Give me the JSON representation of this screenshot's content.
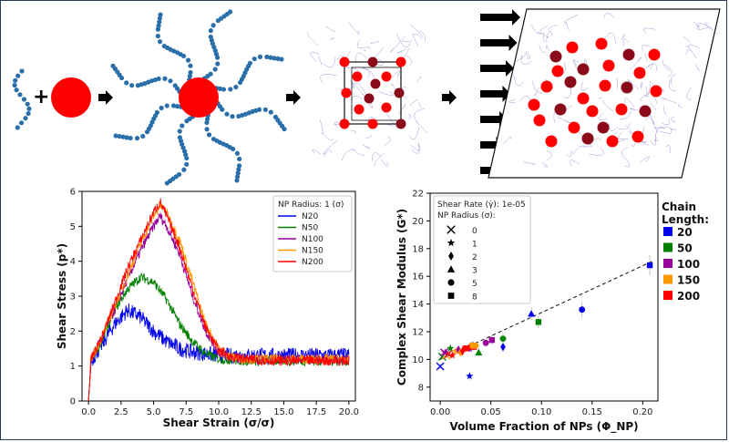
{
  "left_chart": {
    "type": "line",
    "xlabel": "Shear Strain (σ/σ)",
    "ylabel": "Shear Stress (p*)",
    "xlim": [
      -0.5,
      20.5
    ],
    "ylim": [
      0,
      6
    ],
    "xticks": [
      "0.0",
      "2.5",
      "5.0",
      "7.5",
      "10.0",
      "12.5",
      "15.0",
      "17.5",
      "20.0"
    ],
    "yticks": [
      "0",
      "1",
      "2",
      "3",
      "4",
      "5",
      "6"
    ],
    "legend_title": "NP Radius: 1 (σ)",
    "series": [
      {
        "name": "N20",
        "color": "#0000ee",
        "x": [
          0,
          0.2,
          1,
          2,
          3,
          4,
          5,
          6,
          7,
          8,
          9,
          10,
          12,
          14,
          16,
          18,
          20
        ],
        "y": [
          0,
          1.15,
          1.6,
          2.2,
          2.6,
          2.4,
          2.0,
          1.7,
          1.5,
          1.4,
          1.35,
          1.3,
          1.3,
          1.3,
          1.3,
          1.3,
          1.3
        ]
      },
      {
        "name": "N50",
        "color": "#008000",
        "x": [
          0,
          0.2,
          1,
          2,
          3,
          4,
          5,
          6,
          7,
          8,
          9,
          10,
          12,
          14,
          16,
          18,
          20
        ],
        "y": [
          0,
          1.2,
          1.7,
          2.6,
          3.2,
          3.55,
          3.4,
          2.9,
          2.2,
          1.7,
          1.35,
          1.2,
          1.15,
          1.15,
          1.15,
          1.15,
          1.15
        ]
      },
      {
        "name": "N100",
        "color": "#990099",
        "x": [
          0,
          0.2,
          1,
          2,
          3,
          4,
          5,
          5.5,
          6,
          7,
          8,
          9,
          10,
          11,
          12,
          14,
          16,
          18,
          20
        ],
        "y": [
          0,
          1.2,
          1.8,
          2.6,
          3.5,
          4.3,
          5.0,
          5.3,
          5.0,
          4.2,
          3.0,
          2.0,
          1.4,
          1.25,
          1.2,
          1.2,
          1.2,
          1.2,
          1.2
        ]
      },
      {
        "name": "N150",
        "color": "#ff9900",
        "x": [
          0,
          0.2,
          1,
          2,
          3,
          4,
          5,
          5.5,
          6,
          7,
          8,
          9,
          10,
          11,
          12,
          14,
          16,
          18,
          20
        ],
        "y": [
          0,
          1.2,
          1.8,
          2.7,
          3.6,
          4.5,
          5.3,
          5.6,
          5.4,
          4.6,
          3.4,
          2.2,
          1.5,
          1.25,
          1.2,
          1.2,
          1.2,
          1.2,
          1.2
        ]
      },
      {
        "name": "N200",
        "color": "#ff0000",
        "x": [
          0,
          0.2,
          1,
          2,
          3,
          4,
          5,
          5.5,
          6,
          7,
          8,
          9,
          10,
          11,
          12,
          14,
          16,
          18,
          20
        ],
        "y": [
          0,
          1.2,
          1.8,
          2.8,
          3.8,
          4.6,
          5.4,
          5.7,
          5.3,
          4.4,
          3.2,
          2.1,
          1.45,
          1.25,
          1.2,
          1.15,
          1.15,
          1.15,
          1.15
        ]
      }
    ]
  },
  "right_chart": {
    "type": "scatter",
    "xlabel": "Volume Fraction of NPs (Φ_NP)",
    "ylabel": "Complex Shear Modulus (G*)",
    "xlim": [
      -0.01,
      0.215
    ],
    "ylim": [
      7,
      22
    ],
    "xticks": [
      "0.00",
      "0.05",
      "0.10",
      "0.15",
      "0.20"
    ],
    "yticks": [
      "8",
      "10",
      "12",
      "14",
      "16",
      "18",
      "20",
      "22"
    ],
    "legend_line1": "Shear Rate (γ̇): 1e-05",
    "legend_line2": "NP Radius (σ):",
    "marker_legend": [
      {
        "label": "0",
        "marker": "x"
      },
      {
        "label": "1",
        "marker": "star"
      },
      {
        "label": "2",
        "marker": "diamond"
      },
      {
        "label": "3",
        "marker": "triangle"
      },
      {
        "label": "5",
        "marker": "circle"
      },
      {
        "label": "8",
        "marker": "square"
      }
    ],
    "fit_line": {
      "x": [
        0,
        0.21
      ],
      "y": [
        10.0,
        17.1
      ]
    },
    "points": [
      {
        "x": 0.0,
        "y": 9.5,
        "m": "x",
        "c": "#0000ee"
      },
      {
        "x": 0.002,
        "y": 10.2,
        "m": "x",
        "c": "#008000"
      },
      {
        "x": 0.004,
        "y": 10.5,
        "m": "x",
        "c": "#990099"
      },
      {
        "x": 0.006,
        "y": 10.3,
        "m": "x",
        "c": "#ff9900"
      },
      {
        "x": 0.008,
        "y": 10.4,
        "m": "x",
        "c": "#ff0000"
      },
      {
        "x": 0.029,
        "y": 8.8,
        "m": "star",
        "c": "#0000ee"
      },
      {
        "x": 0.01,
        "y": 10.8,
        "m": "star",
        "c": "#008000"
      },
      {
        "x": 0.005,
        "y": 10.5,
        "m": "star",
        "c": "#990099"
      },
      {
        "x": 0.015,
        "y": 10.6,
        "m": "star",
        "c": "#ff9900"
      },
      {
        "x": 0.012,
        "y": 10.3,
        "m": "star",
        "c": "#ff0000"
      },
      {
        "x": 0.062,
        "y": 10.9,
        "m": "diamond",
        "c": "#0000ee"
      },
      {
        "x": 0.032,
        "y": 11.0,
        "m": "diamond",
        "c": "#008000"
      },
      {
        "x": 0.018,
        "y": 10.7,
        "m": "diamond",
        "c": "#990099"
      },
      {
        "x": 0.02,
        "y": 10.5,
        "m": "diamond",
        "c": "#ff9900"
      },
      {
        "x": 0.022,
        "y": 10.6,
        "m": "diamond",
        "c": "#ff0000"
      },
      {
        "x": 0.09,
        "y": 13.3,
        "m": "triangle",
        "c": "#0000ee"
      },
      {
        "x": 0.038,
        "y": 10.5,
        "m": "triangle",
        "c": "#008000"
      },
      {
        "x": 0.028,
        "y": 10.8,
        "m": "triangle",
        "c": "#990099"
      },
      {
        "x": 0.03,
        "y": 11.0,
        "m": "triangle",
        "c": "#ff9900"
      },
      {
        "x": 0.033,
        "y": 10.9,
        "m": "triangle",
        "c": "#ff0000"
      },
      {
        "x": 0.14,
        "y": 13.6,
        "m": "circle",
        "c": "#0000ee"
      },
      {
        "x": 0.062,
        "y": 11.5,
        "m": "circle",
        "c": "#008000"
      },
      {
        "x": 0.045,
        "y": 11.2,
        "m": "circle",
        "c": "#990099"
      },
      {
        "x": 0.035,
        "y": 11.0,
        "m": "circle",
        "c": "#ff9900"
      },
      {
        "x": 0.03,
        "y": 10.9,
        "m": "circle",
        "c": "#ff0000"
      },
      {
        "x": 0.207,
        "y": 16.8,
        "m": "square",
        "c": "#0000ee"
      },
      {
        "x": 0.097,
        "y": 12.7,
        "m": "square",
        "c": "#008000"
      },
      {
        "x": 0.051,
        "y": 11.4,
        "m": "square",
        "c": "#990099"
      },
      {
        "x": 0.032,
        "y": 11.0,
        "m": "square",
        "c": "#ff9900"
      },
      {
        "x": 0.025,
        "y": 10.8,
        "m": "square",
        "c": "#ff0000"
      }
    ],
    "chain_legend_title1": "Chain",
    "chain_legend_title2": "Length:",
    "chain_legend": [
      {
        "label": "20",
        "color": "#0000ee"
      },
      {
        "label": "50",
        "color": "#008000"
      },
      {
        "label": "100",
        "color": "#990099"
      },
      {
        "label": "150",
        "color": "#ff9900"
      },
      {
        "label": "200",
        "color": "#ff0000"
      }
    ]
  },
  "colors": {
    "np_red": "#ff0000",
    "chain_blue": "#2a6faa",
    "dark_red": "#8b0a1a",
    "box_purple": "#8a7acc"
  }
}
